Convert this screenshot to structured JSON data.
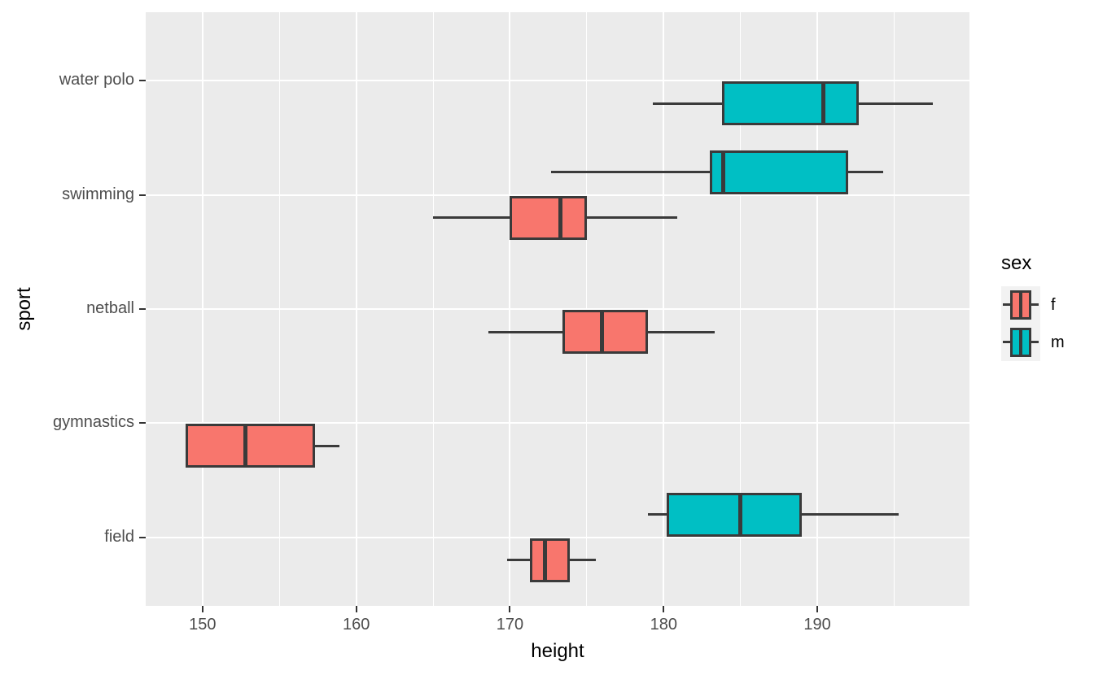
{
  "chart_data": {
    "type": "boxplot",
    "orientation": "horizontal",
    "x_axis": {
      "label": "height",
      "ticks": [
        150,
        160,
        170,
        180,
        190
      ],
      "minor_ticks": [
        155,
        165,
        175,
        185,
        195
      ],
      "range": [
        146.3,
        199.9
      ]
    },
    "y_axis": {
      "label": "sport",
      "categories": [
        "field",
        "gymnastics",
        "netball",
        "swimming",
        "water polo"
      ],
      "range": [
        0.4,
        5.6
      ]
    },
    "legend": {
      "title": "sex",
      "position": "right",
      "entries": [
        {
          "label": "f",
          "color": "#F8766D"
        },
        {
          "label": "m",
          "color": "#00BFC4"
        }
      ]
    },
    "series": [
      {
        "sport": "water polo",
        "sex": "m",
        "slot": "lower",
        "whisker_low": 179.3,
        "q1": 183.8,
        "median": 190.4,
        "q3": 192.7,
        "whisker_high": 197.5
      },
      {
        "sport": "swimming",
        "sex": "m",
        "slot": "upper",
        "whisker_low": 172.7,
        "q1": 183.0,
        "median": 183.9,
        "q3": 192.0,
        "whisker_high": 194.3
      },
      {
        "sport": "swimming",
        "sex": "f",
        "slot": "lower",
        "whisker_low": 165.0,
        "q1": 170.0,
        "median": 173.3,
        "q3": 175.0,
        "whisker_high": 180.9
      },
      {
        "sport": "netball",
        "sex": "f",
        "slot": "lower",
        "whisker_low": 168.6,
        "q1": 173.4,
        "median": 176.0,
        "q3": 179.0,
        "whisker_high": 183.3
      },
      {
        "sport": "gymnastics",
        "sex": "f",
        "slot": "lower",
        "whisker_low": 148.9,
        "q1": 148.9,
        "median": 152.8,
        "q3": 157.3,
        "whisker_high": 158.9
      },
      {
        "sport": "field",
        "sex": "m",
        "slot": "upper",
        "whisker_low": 179.0,
        "q1": 180.2,
        "median": 185.0,
        "q3": 189.0,
        "whisker_high": 195.3
      },
      {
        "sport": "field",
        "sex": "f",
        "slot": "lower",
        "whisker_low": 169.8,
        "q1": 171.3,
        "median": 172.3,
        "q3": 173.9,
        "whisker_high": 175.6
      }
    ],
    "style": {
      "panel_bg": "#EBEBEB",
      "grid_color": "#FFFFFF",
      "box_border": "#3A3A3A",
      "tick_mark_color": "#333333",
      "tick_label_color": "#4D4D4D",
      "axis_title_color": "#000000",
      "legend_key_bg": "#F2F2F2"
    }
  }
}
